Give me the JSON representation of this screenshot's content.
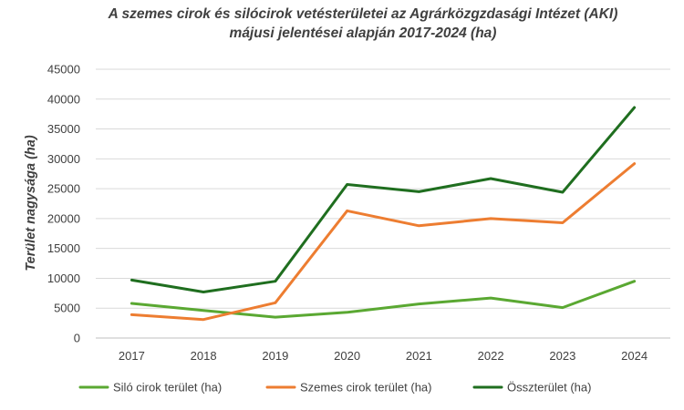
{
  "chart_data": {
    "type": "line",
    "title_lines": [
      "A szemes cirok és silócirok vetésterületei az Agrárközgzdasági Intézet (AKI)",
      "májusi jelentései alapján 2017-2024 (ha)"
    ],
    "xlabel": "",
    "ylabel": "Terület nagysága (ha)",
    "categories": [
      "2017",
      "2018",
      "2019",
      "2020",
      "2021",
      "2022",
      "2023",
      "2024"
    ],
    "ylim": [
      0,
      45000
    ],
    "yticks": [
      0,
      5000,
      10000,
      15000,
      20000,
      25000,
      30000,
      35000,
      40000,
      45000
    ],
    "grid": true,
    "legend_position": "bottom",
    "series": [
      {
        "name": "Siló cirok terület (ha)",
        "color": "#5aa832",
        "values": [
          5800,
          4600,
          3500,
          4300,
          5700,
          6700,
          5100,
          9500
        ]
      },
      {
        "name": "Szemes cirok terület (ha)",
        "color": "#ed7d31",
        "values": [
          3900,
          3100,
          5900,
          21300,
          18800,
          20000,
          19300,
          29200
        ]
      },
      {
        "name": "Összterület (ha)",
        "color": "#1f6e1f",
        "values": [
          9700,
          7700,
          9500,
          25700,
          24500,
          26700,
          24400,
          38600
        ]
      }
    ]
  }
}
